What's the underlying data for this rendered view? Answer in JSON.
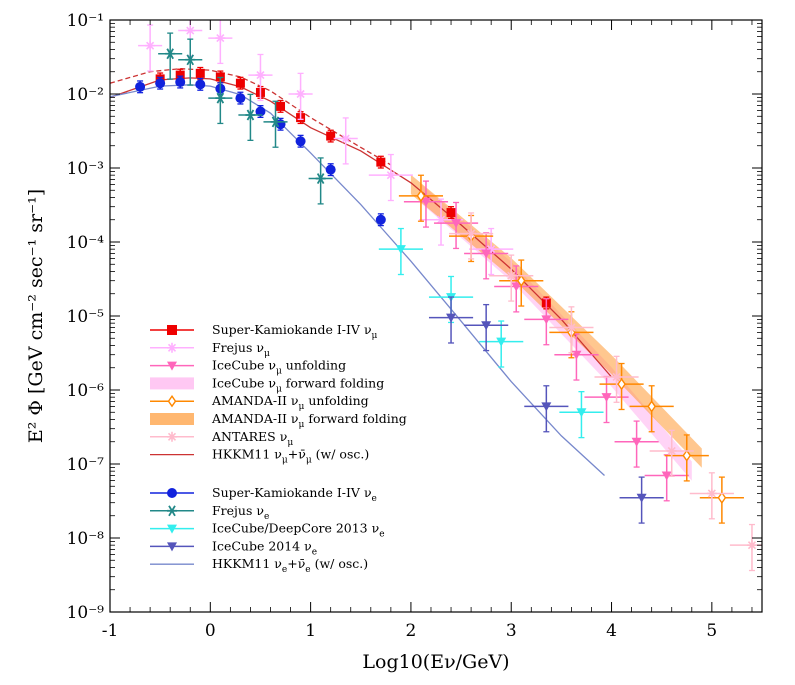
{
  "chart_data": {
    "type": "scatter",
    "xlabel": "Log10(Eν/GeV)",
    "ylabel": "E² Φ [GeV cm⁻² sec⁻¹ sr⁻¹]",
    "xlim": [
      -1,
      5.5
    ],
    "ylim": [
      1e-09,
      0.1
    ],
    "yscale": "log",
    "x_ticks": [
      -1,
      0,
      1,
      2,
      3,
      4,
      5
    ],
    "y_ticks": [
      "10⁻⁹",
      "10⁻⁸",
      "10⁻⁷",
      "10⁻⁶",
      "10⁻⁵",
      "10⁻⁴",
      "10⁻³",
      "10⁻²",
      "10⁻¹"
    ],
    "legend_position": "lower-left",
    "series": [
      {
        "name": "Super-Kamiokande I-IV νμ",
        "color": "#ee0000",
        "marker": "square",
        "points": [
          [
            -0.5,
            0.016
          ],
          [
            -0.3,
            0.018
          ],
          [
            -0.1,
            0.019
          ],
          [
            0.1,
            0.017
          ],
          [
            0.3,
            0.014
          ],
          [
            0.5,
            0.0105
          ],
          [
            0.7,
            0.0068
          ],
          [
            0.9,
            0.0048
          ],
          [
            1.2,
            0.0027
          ],
          [
            1.7,
            0.0012
          ],
          [
            2.4,
            0.00025
          ],
          [
            3.35,
            1.5e-05
          ]
        ]
      },
      {
        "name": "Frejus νμ",
        "color": "#ffb0ff",
        "marker": "cross",
        "points": [
          [
            -0.6,
            0.045
          ],
          [
            -0.2,
            0.072
          ],
          [
            0.1,
            0.057
          ],
          [
            0.5,
            0.018
          ],
          [
            0.9,
            0.01
          ],
          [
            1.35,
            0.0025
          ],
          [
            1.8,
            0.0008
          ],
          [
            2.3,
            0.0002
          ],
          [
            2.8,
            8e-05
          ]
        ]
      },
      {
        "name": "IceCube νμ unfolding",
        "color": "#ff66bb",
        "marker": "triangle-down",
        "points": [
          [
            2.15,
            0.00035
          ],
          [
            2.45,
            0.00018
          ],
          [
            2.75,
            7e-05
          ],
          [
            3.05,
            2.5e-05
          ],
          [
            3.35,
            9e-06
          ],
          [
            3.65,
            3e-06
          ],
          [
            3.95,
            8e-07
          ],
          [
            4.25,
            2e-07
          ],
          [
            4.55,
            7e-08
          ]
        ]
      },
      {
        "name": "IceCube νμ forward folding",
        "color": "#ffb0ee",
        "marker": "band",
        "points": [
          [
            2.1,
            0.00045
          ],
          [
            3.0,
            4e-05
          ],
          [
            4.0,
            1.5e-06
          ],
          [
            4.8,
            8e-08
          ]
        ]
      },
      {
        "name": "AMANDA-II νμ unfolding",
        "color": "#ff8800",
        "marker": "diamond",
        "points": [
          [
            2.1,
            0.00042
          ],
          [
            2.6,
            0.00012
          ],
          [
            3.1,
            3e-05
          ],
          [
            3.6,
            6e-06
          ],
          [
            4.1,
            1.2e-06
          ],
          [
            4.4,
            6e-07
          ],
          [
            4.75,
            1.3e-07
          ],
          [
            5.1,
            3.5e-08
          ]
        ]
      },
      {
        "name": "AMANDA-II νμ forward folding",
        "color": "#ff9933",
        "marker": "band",
        "points": [
          [
            2.0,
            0.0006
          ],
          [
            3.0,
            4.5e-05
          ],
          [
            4.0,
            2.2e-06
          ],
          [
            4.9,
            1.2e-07
          ]
        ]
      },
      {
        "name": "ANTARES νμ",
        "color": "#ffbbcc",
        "marker": "cross",
        "points": [
          [
            2.6,
            0.00013
          ],
          [
            3.0,
            3.5e-05
          ],
          [
            3.6,
            7e-06
          ],
          [
            4.05,
            1.5e-06
          ],
          [
            4.6,
            1.5e-07
          ],
          [
            5.0,
            4e-08
          ],
          [
            5.4,
            8e-09
          ]
        ]
      },
      {
        "name": "HKKM11 νμ+ν̄μ (w/ osc.)",
        "color": "#cc3333",
        "marker": "line",
        "points": [
          [
            -1,
            0.009
          ],
          [
            -0.5,
            0.0155
          ],
          [
            -0.2,
            0.0165
          ],
          [
            0,
            0.016
          ],
          [
            0.3,
            0.0125
          ],
          [
            0.6,
            0.008
          ],
          [
            1.0,
            0.0035
          ],
          [
            1.5,
            0.0017
          ],
          [
            2.0,
            0.00063
          ],
          [
            2.5,
            0.00017
          ],
          [
            3.0,
            4.3e-05
          ],
          [
            3.5,
            9e-06
          ],
          [
            4.0,
            1.5e-06
          ]
        ]
      },
      {
        "name": "Super-Kamiokande I-IV νe",
        "color": "#1122dd",
        "marker": "circle",
        "points": [
          [
            -0.7,
            0.0125
          ],
          [
            -0.5,
            0.014
          ],
          [
            -0.3,
            0.0145
          ],
          [
            -0.1,
            0.0135
          ],
          [
            0.1,
            0.0118
          ],
          [
            0.3,
            0.0088
          ],
          [
            0.5,
            0.0058
          ],
          [
            0.7,
            0.0039
          ],
          [
            0.9,
            0.0023
          ],
          [
            1.2,
            0.00095
          ],
          [
            1.7,
            0.0002
          ]
        ]
      },
      {
        "name": "Frejus νe",
        "color": "#228888",
        "marker": "star",
        "points": [
          [
            -0.4,
            0.035
          ],
          [
            -0.2,
            0.029
          ],
          [
            0.1,
            0.0088
          ],
          [
            0.4,
            0.0052
          ],
          [
            0.65,
            0.0042
          ],
          [
            1.1,
            0.00072
          ]
        ]
      },
      {
        "name": "IceCube/DeepCore 2013 νe",
        "color": "#33eeee",
        "marker": "triangle-down",
        "points": [
          [
            1.9,
            8e-05
          ],
          [
            2.4,
            1.8e-05
          ],
          [
            2.9,
            4.5e-06
          ],
          [
            3.7,
            5e-07
          ]
        ]
      },
      {
        "name": "IceCube 2014 νe",
        "color": "#5555bb",
        "marker": "triangle-down",
        "points": [
          [
            2.4,
            9.5e-06
          ],
          [
            2.75,
            7.5e-06
          ],
          [
            3.35,
            6e-07
          ],
          [
            4.3,
            3.5e-08
          ]
        ]
      },
      {
        "name": "HKKM11 νe+ν̄e (w/ osc.)",
        "color": "#7788cc",
        "marker": "line",
        "points": [
          [
            -1,
            0.0092
          ],
          [
            -0.5,
            0.0128
          ],
          [
            -0.2,
            0.0133
          ],
          [
            0,
            0.0128
          ],
          [
            0.3,
            0.0098
          ],
          [
            0.6,
            0.0055
          ],
          [
            1.0,
            0.0016
          ],
          [
            1.5,
            0.00032
          ],
          [
            2.0,
            5.5e-05
          ],
          [
            2.5,
            8.5e-06
          ],
          [
            3.0,
            1.3e-06
          ],
          [
            3.5,
            2.4e-07
          ],
          [
            3.93,
            7e-08
          ]
        ]
      }
    ],
    "dashed_curve": {
      "color": "#cc3333",
      "points": [
        [
          -1,
          0.014
        ],
        [
          -0.6,
          0.02
        ],
        [
          -0.3,
          0.022
        ],
        [
          0,
          0.021
        ],
        [
          0.3,
          0.017
        ],
        [
          0.6,
          0.011
        ],
        [
          1.0,
          0.0048
        ],
        [
          1.5,
          0.0019
        ],
        [
          1.8,
          0.0011
        ]
      ]
    },
    "legend": {
      "group_mu": [
        {
          "label": "Super-Kamiokande I-IV",
          "sub": "ν",
          "subsub": "μ"
        },
        {
          "label": "Frejus",
          "sub": "ν",
          "subsub": "μ"
        },
        {
          "label": "IceCube",
          "sub": "ν",
          "subsub": "μ",
          "tail": "unfolding"
        },
        {
          "label": "IceCube",
          "sub": "ν",
          "subsub": "μ",
          "tail": "forward folding"
        },
        {
          "label": "AMANDA-II",
          "sub": "ν",
          "subsub": "μ",
          "tail": "unfolding"
        },
        {
          "label": "AMANDA-II",
          "sub": "ν",
          "subsub": "μ",
          "tail": "forward folding"
        },
        {
          "label": "ANTARES",
          "sub": "ν",
          "subsub": "μ"
        },
        {
          "label": "HKKM11",
          "sub": "ν",
          "subsub": "μ",
          "tail": "(w/ osc.)",
          "bar": true
        }
      ],
      "group_e": [
        {
          "label": "Super-Kamiokande I-IV",
          "sub": "ν",
          "subsub": "e"
        },
        {
          "label": "Frejus",
          "sub": "ν",
          "subsub": "e"
        },
        {
          "label": "IceCube/DeepCore 2013",
          "sub": "ν",
          "subsub": "e"
        },
        {
          "label": "IceCube 2014",
          "sub": "ν",
          "subsub": "e"
        },
        {
          "label": "HKKM11",
          "sub": "ν",
          "subsub": "e",
          "tail": "(w/ osc.)",
          "bar": true
        }
      ]
    }
  }
}
